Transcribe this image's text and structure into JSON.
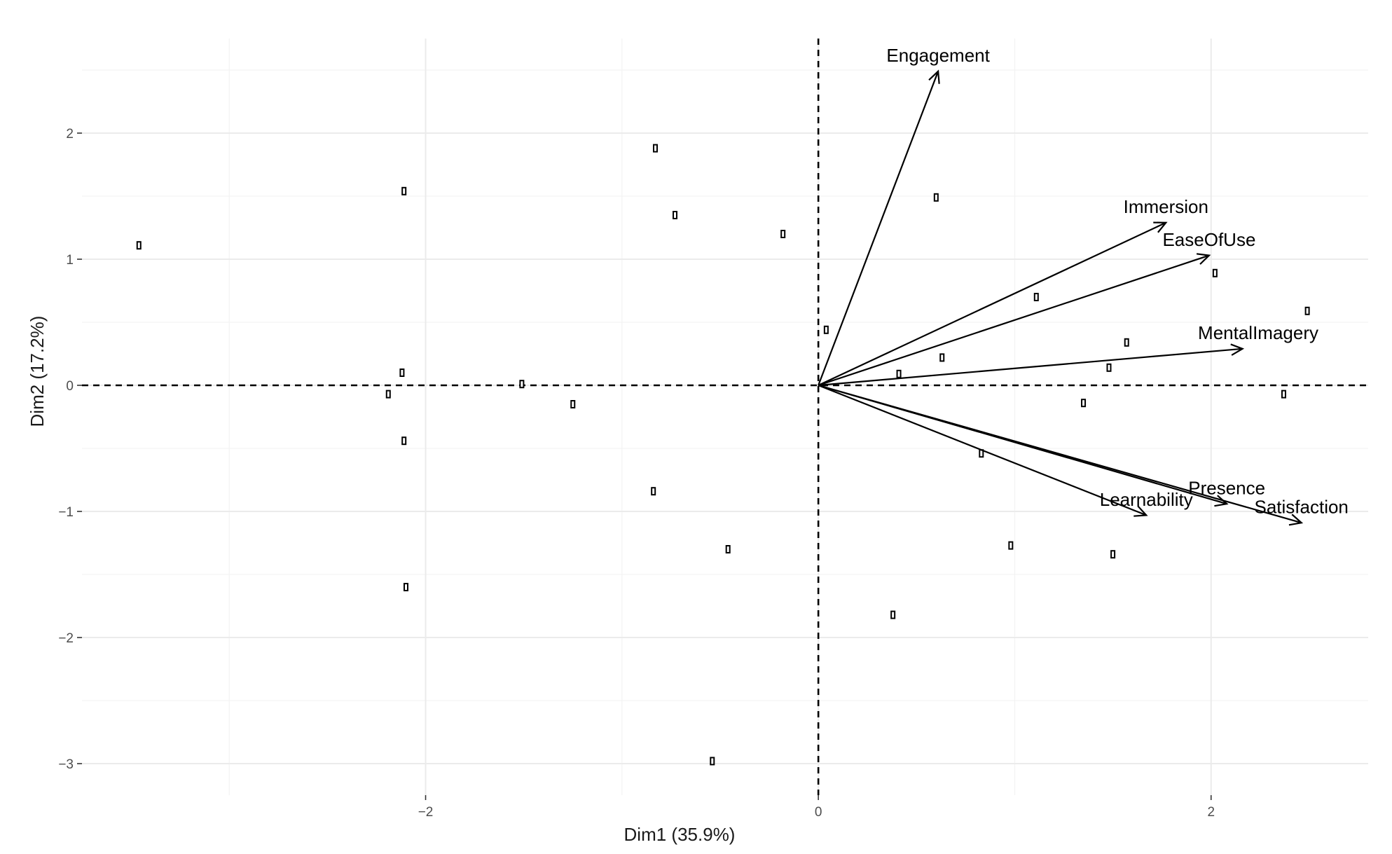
{
  "chart_data": {
    "type": "scatter",
    "subtype": "pca-biplot",
    "xlabel": "Dim1 (35.9%)",
    "ylabel": "Dim2 (17.2%)",
    "xlim": [
      -3.75,
      2.8
    ],
    "ylim": [
      -3.25,
      2.75
    ],
    "x_ticks": [
      -2,
      0,
      2
    ],
    "x_tick_labels": [
      "−2",
      "0",
      "2"
    ],
    "y_ticks": [
      -3,
      -2,
      -1,
      0,
      1,
      2
    ],
    "y_tick_labels": [
      "−3",
      "−2",
      "−1",
      "0",
      "1",
      "2"
    ],
    "grid": true,
    "reference_lines": {
      "x": 0,
      "y": 0,
      "style": "dashed"
    },
    "points": [
      {
        "x": -3.46,
        "y": 1.11
      },
      {
        "x": -2.11,
        "y": 1.54
      },
      {
        "x": -2.12,
        "y": 0.1
      },
      {
        "x": -2.19,
        "y": -0.07
      },
      {
        "x": -2.11,
        "y": -0.44
      },
      {
        "x": -2.1,
        "y": -1.6
      },
      {
        "x": -1.51,
        "y": 0.01
      },
      {
        "x": -1.25,
        "y": -0.15
      },
      {
        "x": -0.83,
        "y": 1.88
      },
      {
        "x": -0.73,
        "y": 1.35
      },
      {
        "x": -0.84,
        "y": -0.84
      },
      {
        "x": -0.46,
        "y": -1.3
      },
      {
        "x": -0.54,
        "y": -2.98
      },
      {
        "x": -0.18,
        "y": 1.2
      },
      {
        "x": 0.04,
        "y": 0.44
      },
      {
        "x": 0.6,
        "y": 1.49
      },
      {
        "x": 0.41,
        "y": 0.09
      },
      {
        "x": 0.63,
        "y": 0.22
      },
      {
        "x": 0.38,
        "y": -1.82
      },
      {
        "x": 0.83,
        "y": -0.54
      },
      {
        "x": 0.98,
        "y": -1.27
      },
      {
        "x": 1.11,
        "y": 0.7
      },
      {
        "x": 1.35,
        "y": -0.14
      },
      {
        "x": 1.48,
        "y": 0.14
      },
      {
        "x": 1.57,
        "y": 0.34
      },
      {
        "x": 1.5,
        "y": -1.34
      },
      {
        "x": 2.02,
        "y": 0.89
      },
      {
        "x": 2.37,
        "y": -0.07
      },
      {
        "x": 2.49,
        "y": 0.59
      }
    ],
    "variables": [
      {
        "name": "Engagement",
        "x": 0.61,
        "y": 2.49,
        "label_x": 0.61,
        "label_y": 2.61
      },
      {
        "name": "Immersion",
        "x": 1.77,
        "y": 1.29,
        "label_x": 1.77,
        "label_y": 1.41
      },
      {
        "name": "EaseOfUse",
        "x": 1.99,
        "y": 1.03,
        "label_x": 1.99,
        "label_y": 1.15
      },
      {
        "name": "MentalImagery",
        "x": 2.16,
        "y": 0.29,
        "label_x": 2.24,
        "label_y": 0.41
      },
      {
        "name": "Presence",
        "x": 2.08,
        "y": -0.94,
        "label_x": 2.08,
        "label_y": -0.82
      },
      {
        "name": "Learnability",
        "x": 1.67,
        "y": -1.03,
        "label_x": 1.67,
        "label_y": -0.91
      },
      {
        "name": "Satisfaction",
        "x": 2.46,
        "y": -1.09,
        "label_x": 2.46,
        "label_y": -0.97
      }
    ]
  }
}
